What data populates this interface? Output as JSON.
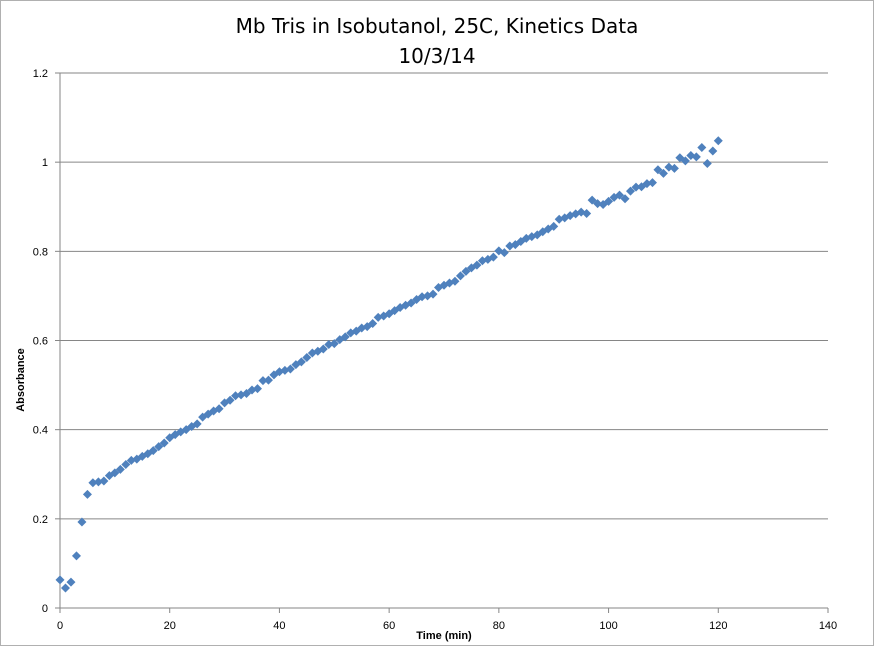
{
  "chart_data": {
    "type": "scatter",
    "title": "Mb Tris in Isobutanol, 25C, Kinetics Data",
    "subtitle": "10/3/14",
    "xlabel": "Time (min)",
    "ylabel": "Absorbance",
    "xlim": [
      0,
      140
    ],
    "ylim": [
      0,
      1.2
    ],
    "x_ticks": [
      "0",
      "20",
      "40",
      "60",
      "80",
      "100",
      "120",
      "140"
    ],
    "y_ticks": [
      "0",
      "0.2",
      "0.4",
      "0.6",
      "0.8",
      "1",
      "1.2"
    ],
    "grid": "horizontal",
    "legend": "none",
    "marker": "diamond",
    "marker_color": "#4f81bd",
    "series": [
      {
        "x": [
          0,
          1,
          2,
          3,
          4,
          5,
          6,
          7,
          8,
          9,
          10,
          11,
          12,
          13,
          14,
          15,
          16,
          17,
          18,
          19,
          20,
          21,
          22,
          23,
          24,
          25,
          26,
          27,
          28,
          29,
          30,
          31,
          32,
          33,
          34,
          35,
          36,
          37,
          38,
          39,
          40,
          41,
          42,
          43,
          44,
          45,
          46,
          47,
          48,
          49,
          50,
          51,
          52,
          53,
          54,
          55,
          56,
          57,
          58,
          59,
          60,
          61,
          62,
          63,
          64,
          65,
          66,
          67,
          68,
          69,
          70,
          71,
          72,
          73,
          74,
          75,
          76,
          77,
          78,
          79,
          80,
          81,
          82,
          83,
          84,
          85,
          86,
          87,
          88,
          89,
          90,
          91,
          92,
          93,
          94,
          95,
          96,
          97,
          98,
          99,
          100,
          101,
          102,
          103,
          104,
          105,
          106,
          107,
          108,
          109,
          110,
          111,
          112,
          113,
          114,
          115,
          116,
          117,
          118,
          119,
          120
        ],
        "y": [
          0.063,
          0.045,
          0.058,
          0.117,
          0.193,
          0.255,
          0.281,
          0.283,
          0.285,
          0.297,
          0.303,
          0.311,
          0.322,
          0.331,
          0.334,
          0.34,
          0.346,
          0.353,
          0.362,
          0.37,
          0.382,
          0.389,
          0.395,
          0.4,
          0.407,
          0.413,
          0.428,
          0.435,
          0.442,
          0.447,
          0.46,
          0.466,
          0.476,
          0.478,
          0.481,
          0.489,
          0.492,
          0.51,
          0.511,
          0.523,
          0.53,
          0.533,
          0.536,
          0.546,
          0.552,
          0.562,
          0.572,
          0.576,
          0.581,
          0.591,
          0.593,
          0.602,
          0.608,
          0.617,
          0.621,
          0.628,
          0.631,
          0.638,
          0.652,
          0.655,
          0.66,
          0.667,
          0.674,
          0.679,
          0.684,
          0.692,
          0.698,
          0.7,
          0.704,
          0.719,
          0.724,
          0.729,
          0.733,
          0.745,
          0.755,
          0.763,
          0.769,
          0.779,
          0.782,
          0.787,
          0.801,
          0.797,
          0.812,
          0.815,
          0.822,
          0.829,
          0.833,
          0.837,
          0.844,
          0.85,
          0.856,
          0.872,
          0.875,
          0.88,
          0.884,
          0.888,
          0.885,
          0.915,
          0.907,
          0.905,
          0.912,
          0.921,
          0.926,
          0.918,
          0.935,
          0.944,
          0.945,
          0.952,
          0.954,
          0.983,
          0.975,
          0.989,
          0.986,
          1.01,
          1.003,
          1.015,
          1.012,
          1.033,
          0.997,
          1.025,
          1.048
        ]
      }
    ]
  }
}
